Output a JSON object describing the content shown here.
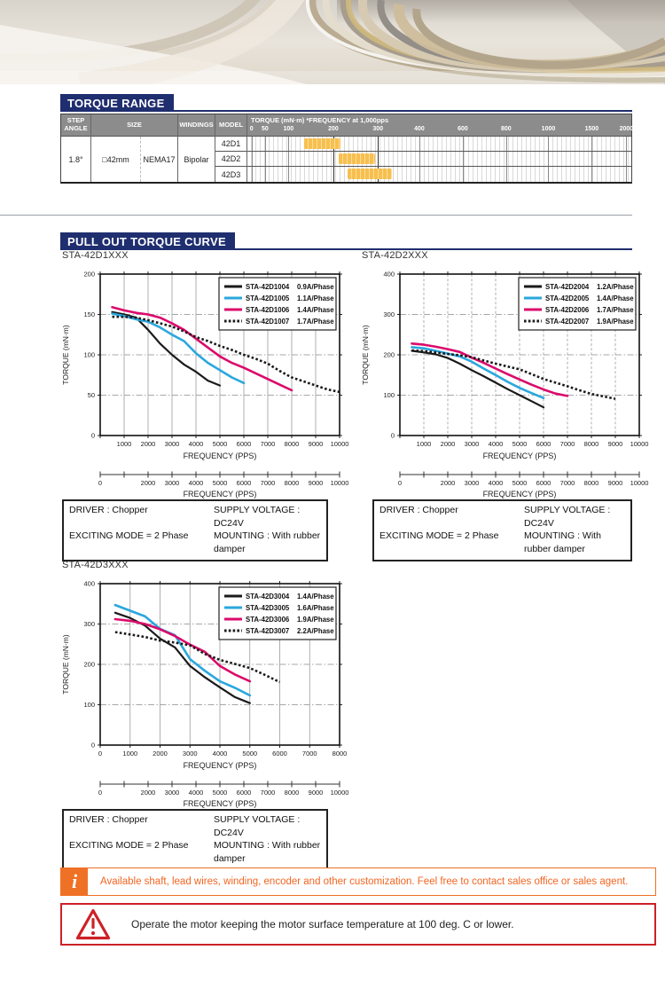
{
  "torque_range": {
    "heading": "TORQUE RANGE",
    "table": {
      "col_headers": {
        "step_angle": "STEP ANGLE",
        "size": "SIZE",
        "windings": "WINDINGS",
        "model": "MODEL"
      },
      "scale_title": "TORQUE (mN·m) *FREQUENCY at 1,000pps",
      "scale_ticks": [
        {
          "label": "0",
          "pos": 1.1
        },
        {
          "label": "50",
          "pos": 4.6
        },
        {
          "label": "100",
          "pos": 10.7
        },
        {
          "label": "200",
          "pos": 22.4
        },
        {
          "label": "300",
          "pos": 34.0
        },
        {
          "label": "400",
          "pos": 44.8
        },
        {
          "label": "600",
          "pos": 56.1
        },
        {
          "label": "800",
          "pos": 67.4
        },
        {
          "label": "1000",
          "pos": 78.4
        },
        {
          "label": "1500",
          "pos": 89.7
        },
        {
          "label": "2000",
          "pos": 98.7
        }
      ],
      "step_angle": "1.8°",
      "size_mm": "□42mm",
      "size_nema": "NEMA17",
      "windings": "Bipolar",
      "rows": [
        {
          "model": "42D1",
          "torque_range_mnm": [
            130,
            210
          ],
          "bar_pct": [
            14.7,
            24.2
          ]
        },
        {
          "model": "42D2",
          "torque_range_mnm": [
            205,
            290
          ],
          "bar_pct": [
            23.7,
            33.2
          ]
        },
        {
          "model": "42D3",
          "torque_range_mnm": [
            225,
            325
          ],
          "bar_pct": [
            26.0,
            37.7
          ]
        }
      ],
      "bar_color": "#F7C04E"
    }
  },
  "pull_out": {
    "heading": "PULL OUT TORQUE CURVE"
  },
  "chart_data": [
    {
      "type": "line",
      "title": "STA-42D1XXX",
      "xlabel": "FREQUENCY (PPS)",
      "ylabel": "TORQUE (mN·m)",
      "xlim": [
        0,
        10000
      ],
      "ylim": [
        0,
        200
      ],
      "xticks": [
        1000,
        2000,
        3000,
        4000,
        5000,
        6000,
        7000,
        8000,
        9000,
        10000
      ],
      "yticks": [
        0,
        50,
        100,
        150,
        200
      ],
      "ygrid": [
        50,
        100,
        150
      ],
      "xgrid_dashed": false,
      "legend_pos": "top-right",
      "series": [
        {
          "name": "STA-42D1004",
          "current": "0.9A/Phase",
          "color": "#1A1A1A",
          "dash": "solid",
          "points": [
            [
              500,
              153
            ],
            [
              1000,
              150
            ],
            [
              1500,
              146
            ],
            [
              2000,
              131
            ],
            [
              2500,
              114
            ],
            [
              3000,
              100
            ],
            [
              3500,
              88
            ],
            [
              4000,
              79
            ],
            [
              4500,
              68
            ],
            [
              5000,
              62
            ]
          ]
        },
        {
          "name": "STA-42D1005",
          "current": "1.1A/Phase",
          "color": "#2AA7DE",
          "dash": "solid",
          "points": [
            [
              500,
              151
            ],
            [
              1000,
              148
            ],
            [
              1500,
              144
            ],
            [
              2000,
              141
            ],
            [
              2500,
              134
            ],
            [
              3000,
              125
            ],
            [
              3500,
              117
            ],
            [
              4000,
              102
            ],
            [
              4500,
              90
            ],
            [
              5000,
              81
            ],
            [
              5500,
              72
            ],
            [
              6000,
              65
            ]
          ]
        },
        {
          "name": "STA-42D1006",
          "current": "1.4A/Phase",
          "color": "#DB0A6B",
          "dash": "solid",
          "points": [
            [
              500,
              159
            ],
            [
              1000,
              155
            ],
            [
              1500,
              152
            ],
            [
              2000,
              150
            ],
            [
              2500,
              146
            ],
            [
              3000,
              139
            ],
            [
              3500,
              131
            ],
            [
              4000,
              120
            ],
            [
              4500,
              109
            ],
            [
              5000,
              98
            ],
            [
              5500,
              90
            ],
            [
              6000,
              84
            ],
            [
              6500,
              77
            ],
            [
              7000,
              70
            ],
            [
              7500,
              63
            ],
            [
              8000,
              56
            ]
          ]
        },
        {
          "name": "STA-42D1007",
          "current": "1.7A/Phase",
          "color": "#1A1A1A",
          "dash": "dotted",
          "points": [
            [
              500,
              147
            ],
            [
              1000,
              147
            ],
            [
              1500,
              146
            ],
            [
              2000,
              143
            ],
            [
              2500,
              139
            ],
            [
              3000,
              135
            ],
            [
              3500,
              129
            ],
            [
              4000,
              122
            ],
            [
              4500,
              117
            ],
            [
              5000,
              111
            ],
            [
              5500,
              106
            ],
            [
              6000,
              100
            ],
            [
              6500,
              95
            ],
            [
              7000,
              89
            ],
            [
              7500,
              80
            ],
            [
              8000,
              72
            ],
            [
              8500,
              67
            ],
            [
              9000,
              62
            ],
            [
              9500,
              57
            ],
            [
              10000,
              54
            ]
          ]
        }
      ],
      "axis2": {
        "range": [
          0,
          10000
        ],
        "tick_step": 1000,
        "labels": [
          "0",
          "",
          "2000",
          "3000",
          "4000",
          "5000",
          "6000",
          "7000",
          "8000",
          "9000",
          "10000"
        ],
        "xlabel": "FREQUENCY (PPS)"
      }
    },
    {
      "type": "line",
      "title": "STA-42D2XXX",
      "xlabel": "FREQUENCY (PPS)",
      "ylabel": "TORQUE (mN·m)",
      "xlim": [
        0,
        10000
      ],
      "ylim": [
        0,
        400
      ],
      "xticks": [
        1000,
        2000,
        3000,
        4000,
        5000,
        6000,
        7000,
        8000,
        9000,
        10000
      ],
      "yticks": [
        0,
        100,
        200,
        300,
        400
      ],
      "ygrid": [
        100,
        200,
        300
      ],
      "xgrid_dashed": true,
      "legend_pos": "top-right",
      "series": [
        {
          "name": "STA-42D2004",
          "current": "1.2A/Phase",
          "color": "#1A1A1A",
          "dash": "solid",
          "points": [
            [
              500,
              210
            ],
            [
              1000,
              206
            ],
            [
              1500,
              201
            ],
            [
              2000,
              192
            ],
            [
              2500,
              178
            ],
            [
              3000,
              162
            ],
            [
              3500,
              147
            ],
            [
              4000,
              131
            ],
            [
              4500,
              115
            ],
            [
              5000,
              100
            ],
            [
              5500,
              85
            ],
            [
              6000,
              70
            ]
          ]
        },
        {
          "name": "STA-42D2005",
          "current": "1.4A/Phase",
          "color": "#2AA7DE",
          "dash": "solid",
          "points": [
            [
              500,
              219
            ],
            [
              1000,
              216
            ],
            [
              1500,
              210
            ],
            [
              2000,
              203
            ],
            [
              2500,
              196
            ],
            [
              3000,
              183
            ],
            [
              3500,
              166
            ],
            [
              4000,
              150
            ],
            [
              4500,
              133
            ],
            [
              5000,
              118
            ],
            [
              5500,
              105
            ],
            [
              6000,
              93
            ]
          ]
        },
        {
          "name": "STA-42D2006",
          "current": "1.7A/Phase",
          "color": "#DB0A6B",
          "dash": "solid",
          "points": [
            [
              500,
              228
            ],
            [
              1000,
              225
            ],
            [
              1500,
              220
            ],
            [
              2000,
              214
            ],
            [
              2500,
              207
            ],
            [
              3000,
              193
            ],
            [
              3500,
              180
            ],
            [
              4000,
              166
            ],
            [
              4500,
              152
            ],
            [
              5000,
              139
            ],
            [
              5500,
              126
            ],
            [
              6000,
              114
            ],
            [
              6500,
              104
            ],
            [
              7000,
              98
            ]
          ]
        },
        {
          "name": "STA-42D2007",
          "current": "1.9A/Phase",
          "color": "#1A1A1A",
          "dash": "dotted",
          "points": [
            [
              500,
              211
            ],
            [
              1000,
              209
            ],
            [
              1500,
              206
            ],
            [
              2000,
              202
            ],
            [
              2500,
              199
            ],
            [
              3000,
              194
            ],
            [
              3500,
              186
            ],
            [
              4000,
              178
            ],
            [
              4500,
              171
            ],
            [
              5000,
              164
            ],
            [
              5500,
              152
            ],
            [
              6000,
              140
            ],
            [
              6500,
              131
            ],
            [
              7000,
              122
            ],
            [
              7500,
              112
            ],
            [
              8000,
              103
            ],
            [
              8500,
              97
            ],
            [
              9000,
              91
            ]
          ]
        }
      ],
      "axis2": {
        "range": [
          0,
          10000
        ],
        "tick_step": 1000,
        "labels": [
          "0",
          "",
          "2000",
          "3000",
          "4000",
          "5000",
          "6000",
          "7000",
          "8000",
          "9000",
          "10000"
        ],
        "xlabel": "FREQUENCY (PPS)"
      }
    },
    {
      "type": "line",
      "title": "STA-42D3XXX",
      "xlabel": "FREQUENCY (PPS)",
      "ylabel": "TORQUE (mN·m)",
      "xlim": [
        0,
        8000
      ],
      "ylim": [
        0,
        400
      ],
      "xticks": [
        0,
        1000,
        2000,
        3000,
        4000,
        5000,
        6000,
        7000,
        8000
      ],
      "yticks": [
        0,
        100,
        200,
        300,
        400
      ],
      "ygrid": [
        100,
        200,
        300
      ],
      "xgrid_dashed": false,
      "legend_pos": "top-right",
      "series": [
        {
          "name": "STA-42D3004",
          "current": "1.4A/Phase",
          "color": "#1A1A1A",
          "dash": "solid",
          "points": [
            [
              500,
              328
            ],
            [
              1000,
              315
            ],
            [
              1500,
              296
            ],
            [
              2000,
              264
            ],
            [
              2500,
              242
            ],
            [
              3000,
              196
            ],
            [
              3500,
              168
            ],
            [
              4000,
              143
            ],
            [
              4500,
              119
            ],
            [
              5000,
              104
            ]
          ]
        },
        {
          "name": "STA-42D3005",
          "current": "1.6A/Phase",
          "color": "#2AA7DE",
          "dash": "solid",
          "points": [
            [
              500,
              347
            ],
            [
              1000,
              333
            ],
            [
              1500,
              319
            ],
            [
              2000,
              288
            ],
            [
              2500,
              272
            ],
            [
              3000,
              213
            ],
            [
              3500,
              184
            ],
            [
              4000,
              158
            ],
            [
              4500,
              142
            ],
            [
              5000,
              123
            ]
          ]
        },
        {
          "name": "STA-42D3006",
          "current": "1.9A/Phase",
          "color": "#DB0A6B",
          "dash": "solid",
          "points": [
            [
              500,
              312
            ],
            [
              1000,
              308
            ],
            [
              1500,
              300
            ],
            [
              2000,
              287
            ],
            [
              2500,
              270
            ],
            [
              3000,
              249
            ],
            [
              3500,
              231
            ],
            [
              4000,
              196
            ],
            [
              4500,
              175
            ],
            [
              5000,
              158
            ]
          ]
        },
        {
          "name": "STA-42D3007",
          "current": "2.2A/Phase",
          "color": "#1A1A1A",
          "dash": "dotted",
          "points": [
            [
              500,
              280
            ],
            [
              1000,
              274
            ],
            [
              1500,
              268
            ],
            [
              2000,
              259
            ],
            [
              2500,
              254
            ],
            [
              3000,
              247
            ],
            [
              3500,
              226
            ],
            [
              4000,
              211
            ],
            [
              4500,
              201
            ],
            [
              5000,
              191
            ],
            [
              5500,
              174
            ],
            [
              6000,
              156
            ]
          ]
        }
      ],
      "axis2": {
        "range": [
          0,
          10000
        ],
        "tick_step": 1000,
        "labels": [
          "0",
          "",
          "2000",
          "3000",
          "4000",
          "5000",
          "6000",
          "7000",
          "8000",
          "9000",
          "10000"
        ],
        "xlabel": "FREQUENCY (PPS)"
      }
    }
  ],
  "driver_note": {
    "driver": "DRIVER : Chopper",
    "supply": "SUPPLY VOLTAGE : DC24V",
    "exciting": "EXCITING MODE = 2 Phase",
    "mounting": "MOUNTING : With rubber damper"
  },
  "info_note": {
    "text": "Available shaft, lead wires, winding, encoder and other customization. Feel free to contact sales office or sales agent.",
    "icon": "i",
    "color": "#EE7125"
  },
  "warning_note": {
    "text": "Operate the motor keeping the motor surface temperature at 100 deg. C or lower.",
    "color": "#CE2127"
  },
  "colors": {
    "navy": "#1F2E6E",
    "cyan": "#2AA7DE",
    "magenta": "#DB0A6B",
    "curve_black": "#1A1A1A",
    "orange": "#EE7125",
    "red": "#CE2127",
    "bar_orange": "#F7C04E"
  }
}
